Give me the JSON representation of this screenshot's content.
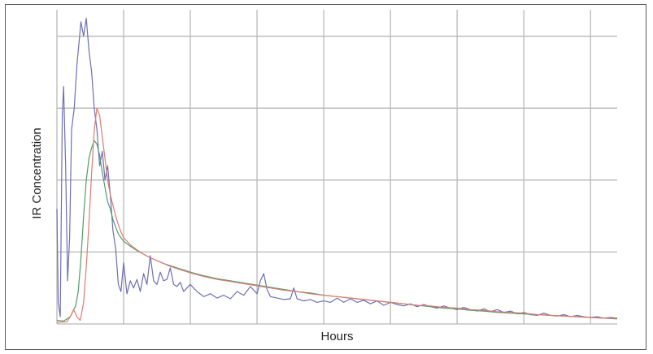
{
  "chart_data": {
    "type": "line",
    "title": "",
    "xlabel": "Hours",
    "ylabel": "IR Concentration",
    "xlim": [
      0,
      8.4
    ],
    "ylim": [
      0,
      4.3
    ],
    "grid": true,
    "legend": "none",
    "x_gridlines": [
      1,
      2,
      3,
      4,
      5,
      6,
      7,
      8
    ],
    "y_gridlines": [
      1,
      2,
      3,
      4
    ],
    "series": [
      {
        "color": "#6e6eb8",
        "points": [
          [
            0.0,
            1.6
          ],
          [
            0.02,
            0.3
          ],
          [
            0.05,
            0.1
          ],
          [
            0.08,
            2.9
          ],
          [
            0.1,
            3.3
          ],
          [
            0.13,
            2.2
          ],
          [
            0.16,
            0.6
          ],
          [
            0.19,
            1.2
          ],
          [
            0.22,
            2.7
          ],
          [
            0.26,
            3.0
          ],
          [
            0.3,
            3.6
          ],
          [
            0.33,
            3.9
          ],
          [
            0.36,
            4.2
          ],
          [
            0.4,
            4.0
          ],
          [
            0.44,
            4.25
          ],
          [
            0.48,
            3.8
          ],
          [
            0.52,
            3.5
          ],
          [
            0.56,
            3.0
          ],
          [
            0.6,
            2.7
          ],
          [
            0.64,
            2.2
          ],
          [
            0.68,
            2.4
          ],
          [
            0.72,
            2.0
          ],
          [
            0.76,
            2.2
          ],
          [
            0.8,
            1.8
          ],
          [
            0.84,
            1.3
          ],
          [
            0.88,
            1.05
          ],
          [
            0.92,
            0.55
          ],
          [
            0.96,
            0.45
          ],
          [
            1.0,
            0.85
          ],
          [
            1.05,
            0.42
          ],
          [
            1.1,
            0.6
          ],
          [
            1.15,
            0.5
          ],
          [
            1.2,
            0.62
          ],
          [
            1.25,
            0.45
          ],
          [
            1.3,
            0.7
          ],
          [
            1.35,
            0.55
          ],
          [
            1.4,
            0.95
          ],
          [
            1.45,
            0.6
          ],
          [
            1.5,
            0.55
          ],
          [
            1.55,
            0.72
          ],
          [
            1.6,
            0.6
          ],
          [
            1.65,
            0.62
          ],
          [
            1.7,
            0.78
          ],
          [
            1.75,
            0.55
          ],
          [
            1.8,
            0.52
          ],
          [
            1.85,
            0.58
          ],
          [
            1.9,
            0.45
          ],
          [
            1.95,
            0.5
          ],
          [
            2.0,
            0.55
          ],
          [
            2.1,
            0.45
          ],
          [
            2.2,
            0.38
          ],
          [
            2.3,
            0.42
          ],
          [
            2.4,
            0.36
          ],
          [
            2.5,
            0.4
          ],
          [
            2.6,
            0.35
          ],
          [
            2.7,
            0.45
          ],
          [
            2.8,
            0.4
          ],
          [
            2.9,
            0.52
          ],
          [
            3.0,
            0.42
          ],
          [
            3.05,
            0.6
          ],
          [
            3.1,
            0.7
          ],
          [
            3.15,
            0.48
          ],
          [
            3.2,
            0.38
          ],
          [
            3.3,
            0.36
          ],
          [
            3.4,
            0.34
          ],
          [
            3.5,
            0.35
          ],
          [
            3.55,
            0.5
          ],
          [
            3.6,
            0.35
          ],
          [
            3.7,
            0.32
          ],
          [
            3.8,
            0.34
          ],
          [
            3.9,
            0.3
          ],
          [
            4.0,
            0.32
          ],
          [
            4.1,
            0.3
          ],
          [
            4.2,
            0.36
          ],
          [
            4.3,
            0.3
          ],
          [
            4.4,
            0.35
          ],
          [
            4.5,
            0.3
          ],
          [
            4.6,
            0.33
          ],
          [
            4.7,
            0.28
          ],
          [
            4.8,
            0.32
          ],
          [
            4.9,
            0.26
          ],
          [
            5.0,
            0.3
          ],
          [
            5.1,
            0.27
          ],
          [
            5.2,
            0.25
          ],
          [
            5.3,
            0.28
          ],
          [
            5.4,
            0.24
          ],
          [
            5.5,
            0.27
          ],
          [
            5.6,
            0.24
          ],
          [
            5.7,
            0.22
          ],
          [
            5.8,
            0.25
          ],
          [
            5.9,
            0.22
          ],
          [
            6.0,
            0.2
          ],
          [
            6.1,
            0.23
          ],
          [
            6.2,
            0.2
          ],
          [
            6.3,
            0.18
          ],
          [
            6.4,
            0.21
          ],
          [
            6.5,
            0.17
          ],
          [
            6.6,
            0.2
          ],
          [
            6.7,
            0.16
          ],
          [
            6.8,
            0.18
          ],
          [
            6.9,
            0.14
          ],
          [
            7.0,
            0.16
          ],
          [
            7.1,
            0.13
          ],
          [
            7.2,
            0.12
          ],
          [
            7.3,
            0.15
          ],
          [
            7.4,
            0.12
          ],
          [
            7.5,
            0.11
          ],
          [
            7.6,
            0.13
          ],
          [
            7.7,
            0.1
          ],
          [
            7.8,
            0.12
          ],
          [
            7.9,
            0.1
          ],
          [
            8.0,
            0.09
          ],
          [
            8.1,
            0.1
          ],
          [
            8.2,
            0.08
          ],
          [
            8.3,
            0.09
          ],
          [
            8.4,
            0.08
          ]
        ]
      },
      {
        "color": "#4e9e6a",
        "points": [
          [
            0.0,
            0.05
          ],
          [
            0.1,
            0.04
          ],
          [
            0.2,
            0.1
          ],
          [
            0.28,
            0.25
          ],
          [
            0.32,
            0.45
          ],
          [
            0.36,
            0.9
          ],
          [
            0.4,
            1.5
          ],
          [
            0.44,
            2.0
          ],
          [
            0.48,
            2.3
          ],
          [
            0.52,
            2.45
          ],
          [
            0.56,
            2.55
          ],
          [
            0.6,
            2.5
          ],
          [
            0.64,
            2.35
          ],
          [
            0.68,
            2.1
          ],
          [
            0.72,
            1.9
          ],
          [
            0.76,
            1.7
          ],
          [
            0.8,
            1.6
          ],
          [
            0.84,
            1.45
          ],
          [
            0.88,
            1.35
          ],
          [
            0.92,
            1.25
          ],
          [
            0.96,
            1.2
          ],
          [
            1.0,
            1.15
          ],
          [
            1.1,
            1.08
          ],
          [
            1.2,
            1.02
          ],
          [
            1.3,
            0.97
          ],
          [
            1.4,
            0.92
          ],
          [
            1.5,
            0.88
          ],
          [
            1.6,
            0.84
          ],
          [
            1.7,
            0.81
          ],
          [
            1.8,
            0.78
          ],
          [
            1.9,
            0.75
          ],
          [
            2.0,
            0.72
          ],
          [
            2.2,
            0.67
          ],
          [
            2.4,
            0.63
          ],
          [
            2.6,
            0.6
          ],
          [
            2.8,
            0.57
          ],
          [
            3.0,
            0.54
          ],
          [
            3.2,
            0.51
          ],
          [
            3.4,
            0.48
          ],
          [
            3.6,
            0.45
          ],
          [
            3.8,
            0.43
          ],
          [
            4.0,
            0.4
          ],
          [
            4.2,
            0.38
          ],
          [
            4.4,
            0.36
          ],
          [
            4.6,
            0.34
          ],
          [
            4.8,
            0.32
          ],
          [
            5.0,
            0.3
          ],
          [
            5.2,
            0.28
          ],
          [
            5.4,
            0.26
          ],
          [
            5.6,
            0.24
          ],
          [
            5.8,
            0.22
          ],
          [
            6.0,
            0.21
          ],
          [
            6.2,
            0.19
          ],
          [
            6.4,
            0.18
          ],
          [
            6.6,
            0.16
          ],
          [
            6.8,
            0.15
          ],
          [
            7.0,
            0.14
          ],
          [
            7.2,
            0.13
          ],
          [
            7.4,
            0.12
          ],
          [
            7.6,
            0.11
          ],
          [
            7.8,
            0.1
          ],
          [
            8.0,
            0.09
          ],
          [
            8.2,
            0.08
          ],
          [
            8.4,
            0.07
          ]
        ]
      },
      {
        "color": "#e07b72",
        "points": [
          [
            0.0,
            0.02
          ],
          [
            0.15,
            0.03
          ],
          [
            0.2,
            0.1
          ],
          [
            0.25,
            0.2
          ],
          [
            0.3,
            0.1
          ],
          [
            0.35,
            0.05
          ],
          [
            0.4,
            0.3
          ],
          [
            0.44,
            0.8
          ],
          [
            0.48,
            1.4
          ],
          [
            0.52,
            2.1
          ],
          [
            0.56,
            2.7
          ],
          [
            0.6,
            3.0
          ],
          [
            0.64,
            2.9
          ],
          [
            0.68,
            2.6
          ],
          [
            0.72,
            2.3
          ],
          [
            0.76,
            2.0
          ],
          [
            0.8,
            1.8
          ],
          [
            0.84,
            1.65
          ],
          [
            0.88,
            1.5
          ],
          [
            0.92,
            1.38
          ],
          [
            0.96,
            1.28
          ],
          [
            1.0,
            1.2
          ],
          [
            1.1,
            1.1
          ],
          [
            1.2,
            1.03
          ],
          [
            1.3,
            0.97
          ],
          [
            1.4,
            0.92
          ],
          [
            1.5,
            0.88
          ],
          [
            1.6,
            0.84
          ],
          [
            1.7,
            0.8
          ],
          [
            1.8,
            0.77
          ],
          [
            1.9,
            0.74
          ],
          [
            2.0,
            0.71
          ],
          [
            2.2,
            0.66
          ],
          [
            2.4,
            0.62
          ],
          [
            2.6,
            0.59
          ],
          [
            2.8,
            0.56
          ],
          [
            3.0,
            0.53
          ],
          [
            3.2,
            0.5
          ],
          [
            3.4,
            0.47
          ],
          [
            3.6,
            0.45
          ],
          [
            3.8,
            0.42
          ],
          [
            4.0,
            0.4
          ],
          [
            4.2,
            0.38
          ],
          [
            4.4,
            0.36
          ],
          [
            4.6,
            0.34
          ],
          [
            4.8,
            0.32
          ],
          [
            5.0,
            0.3
          ],
          [
            5.2,
            0.28
          ],
          [
            5.4,
            0.26
          ],
          [
            5.6,
            0.25
          ],
          [
            5.8,
            0.23
          ],
          [
            6.0,
            0.22
          ],
          [
            6.2,
            0.2
          ],
          [
            6.4,
            0.19
          ],
          [
            6.6,
            0.17
          ],
          [
            6.8,
            0.16
          ],
          [
            7.0,
            0.15
          ],
          [
            7.2,
            0.13
          ],
          [
            7.4,
            0.12
          ],
          [
            7.6,
            0.11
          ],
          [
            7.8,
            0.1
          ],
          [
            8.0,
            0.09
          ],
          [
            8.2,
            0.08
          ],
          [
            8.4,
            0.08
          ]
        ]
      }
    ]
  }
}
